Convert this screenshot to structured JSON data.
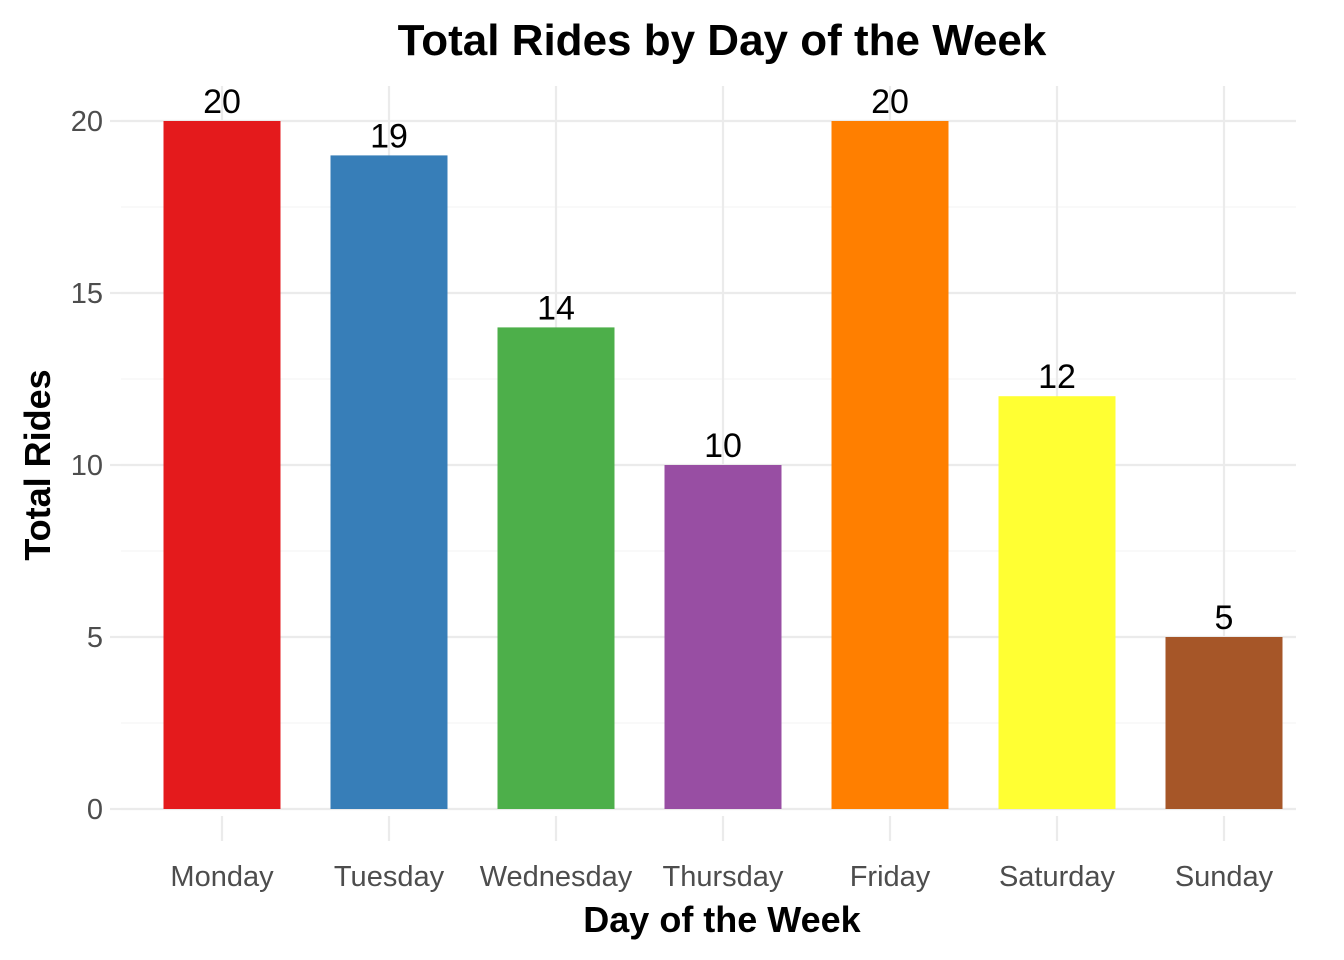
{
  "chart_data": {
    "type": "bar",
    "title": "Total Rides by Day of the Week",
    "xlabel": "Day of the Week",
    "ylabel": "Total Rides",
    "categories": [
      "Monday",
      "Tuesday",
      "Wednesday",
      "Thursday",
      "Friday",
      "Saturday",
      "Sunday"
    ],
    "values": [
      20,
      19,
      14,
      10,
      20,
      12,
      5
    ],
    "data_labels": [
      "20",
      "19",
      "14",
      "10",
      "20",
      "12",
      "5"
    ],
    "colors": [
      "#e41a1c",
      "#377eb8",
      "#4daf4a",
      "#984ea3",
      "#ff7f00",
      "#ffff33",
      "#a65628"
    ],
    "ylim": [
      0,
      20
    ],
    "y_ticks": [
      0,
      5,
      10,
      15,
      20
    ],
    "y_tick_labels": [
      "0",
      "5",
      "10",
      "15",
      "20"
    ],
    "grid": true,
    "legend": "none"
  }
}
